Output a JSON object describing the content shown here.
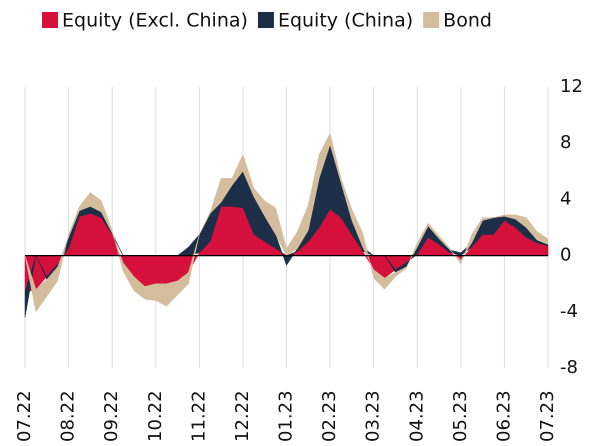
{
  "chart_data": {
    "type": "stacked_area",
    "categories": [
      "07.22",
      null,
      null,
      null,
      "08.22",
      null,
      null,
      null,
      "09.22",
      null,
      null,
      null,
      "10.22",
      null,
      null,
      null,
      "11.22",
      null,
      null,
      null,
      "12.22",
      null,
      null,
      null,
      "01.23",
      null,
      null,
      null,
      "02.23",
      null,
      null,
      null,
      "03.23",
      null,
      null,
      null,
      "04.23",
      null,
      null,
      null,
      "05.23",
      null,
      null,
      null,
      "06.23",
      null,
      null,
      null,
      "07.23"
    ],
    "series": [
      {
        "name": "Equity (Excl. China)",
        "color": "#d5103a",
        "values": [
          -2.6,
          -2.4,
          -1.5,
          -0.6,
          0.5,
          2.8,
          3.0,
          2.7,
          1.5,
          -0.5,
          -1.5,
          -2.2,
          -2.0,
          -2.0,
          -1.8,
          -1.2,
          0.2,
          1.0,
          3.5,
          3.5,
          3.4,
          1.5,
          1.0,
          0.5,
          0,
          0.3,
          1.0,
          2.0,
          3.3,
          2.7,
          1.5,
          0.3,
          -1.0,
          -1.6,
          -1.0,
          -0.5,
          0.1,
          1.3,
          0.8,
          0.2,
          -0.3,
          0.6,
          1.5,
          1.5,
          2.5,
          2.0,
          1.3,
          0.9,
          0.7
        ]
      },
      {
        "name": "Equity (China)",
        "color": "#1c2e48",
        "values": [
          -1.8,
          0,
          -0.2,
          -0.2,
          0.8,
          0.4,
          0.5,
          0.4,
          0.1,
          0,
          0,
          0,
          0,
          0,
          0,
          0.6,
          1.3,
          2.0,
          0.3,
          1.5,
          2.6,
          2.7,
          1.8,
          1.0,
          -0.7,
          0.2,
          0.8,
          3.5,
          4.6,
          2.5,
          1.0,
          0.3,
          0,
          0,
          -0.2,
          -0.3,
          0.5,
          0.8,
          0.4,
          0.2,
          0.2,
          0.3,
          1.0,
          1.2,
          0.3,
          0.6,
          0.7,
          0.2,
          0.1
        ]
      },
      {
        "name": "Bond",
        "color": "#d4bd9c",
        "values": [
          0,
          -1.6,
          -1.2,
          -1.0,
          0.2,
          0.3,
          1.0,
          0.8,
          0.2,
          -0.6,
          -1.0,
          -0.9,
          -1.2,
          -1.6,
          -1.0,
          -0.8,
          0,
          0.1,
          1.7,
          0.5,
          1.2,
          0.6,
          1.1,
          1.9,
          0.5,
          1.2,
          1.8,
          1.7,
          0.8,
          0.3,
          0.8,
          1.0,
          -0.6,
          -0.8,
          -0.3,
          -0.1,
          0.3,
          0.2,
          0.2,
          0.1,
          -0.3,
          0.6,
          0.2,
          0,
          0.1,
          0.3,
          0.7,
          0.6,
          0.4
        ]
      }
    ],
    "ylim": [
      -8,
      12
    ],
    "yticks": [
      -8,
      -4,
      0,
      4,
      8,
      12
    ],
    "legend": "top"
  }
}
